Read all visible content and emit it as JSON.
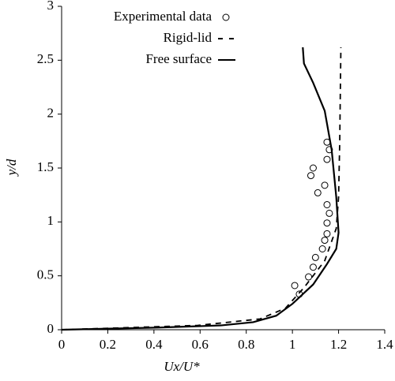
{
  "chart_data": {
    "type": "scatter-line",
    "x_label": "Ux/U*",
    "y_label": "y/d",
    "xlim": [
      0,
      1.4
    ],
    "xticks": [
      0,
      0.2,
      0.4,
      0.6,
      0.8,
      1,
      1.2,
      1.4
    ],
    "ylim": [
      0,
      3
    ],
    "yticks": [
      0,
      0.5,
      1,
      1.5,
      2,
      2.5,
      3
    ],
    "grid": false,
    "legend": "top",
    "series": [
      {
        "name": "Experimental data",
        "color": "#000000",
        "style": "markers",
        "x": [
          1.01,
          1.03,
          1.07,
          1.1,
          1.09,
          1.13,
          1.14,
          1.15,
          1.15,
          1.16,
          1.15,
          1.11,
          1.14,
          1.09,
          1.08,
          1.15,
          1.16,
          1.15
        ],
        "values": [
          0.41,
          0.33,
          0.49,
          0.67,
          0.58,
          0.75,
          0.83,
          0.89,
          0.99,
          1.08,
          1.16,
          1.27,
          1.34,
          1.5,
          1.43,
          1.58,
          1.67,
          1.74
        ]
      },
      {
        "name": "Rigid-lid",
        "color": "#000000",
        "style": "dashed",
        "x": [
          0,
          0.59,
          0.86,
          0.97,
          1.05,
          1.14,
          1.19,
          1.2,
          1.205,
          1.21
        ],
        "values": [
          0,
          0.04,
          0.1,
          0.2,
          0.39,
          0.64,
          0.94,
          1.23,
          1.74,
          2.62
        ]
      },
      {
        "name": "Free surface",
        "color": "#000000",
        "style": "solid",
        "x": [
          0,
          0.42,
          0.69,
          0.83,
          0.93,
          1.0,
          1.09,
          1.15,
          1.19,
          1.2,
          1.19,
          1.17,
          1.14,
          1.09,
          1.05,
          1.045
        ],
        "values": [
          0,
          0.02,
          0.04,
          0.07,
          0.13,
          0.24,
          0.42,
          0.61,
          0.75,
          0.9,
          1.23,
          1.67,
          2.03,
          2.29,
          2.47,
          2.62
        ]
      }
    ]
  }
}
